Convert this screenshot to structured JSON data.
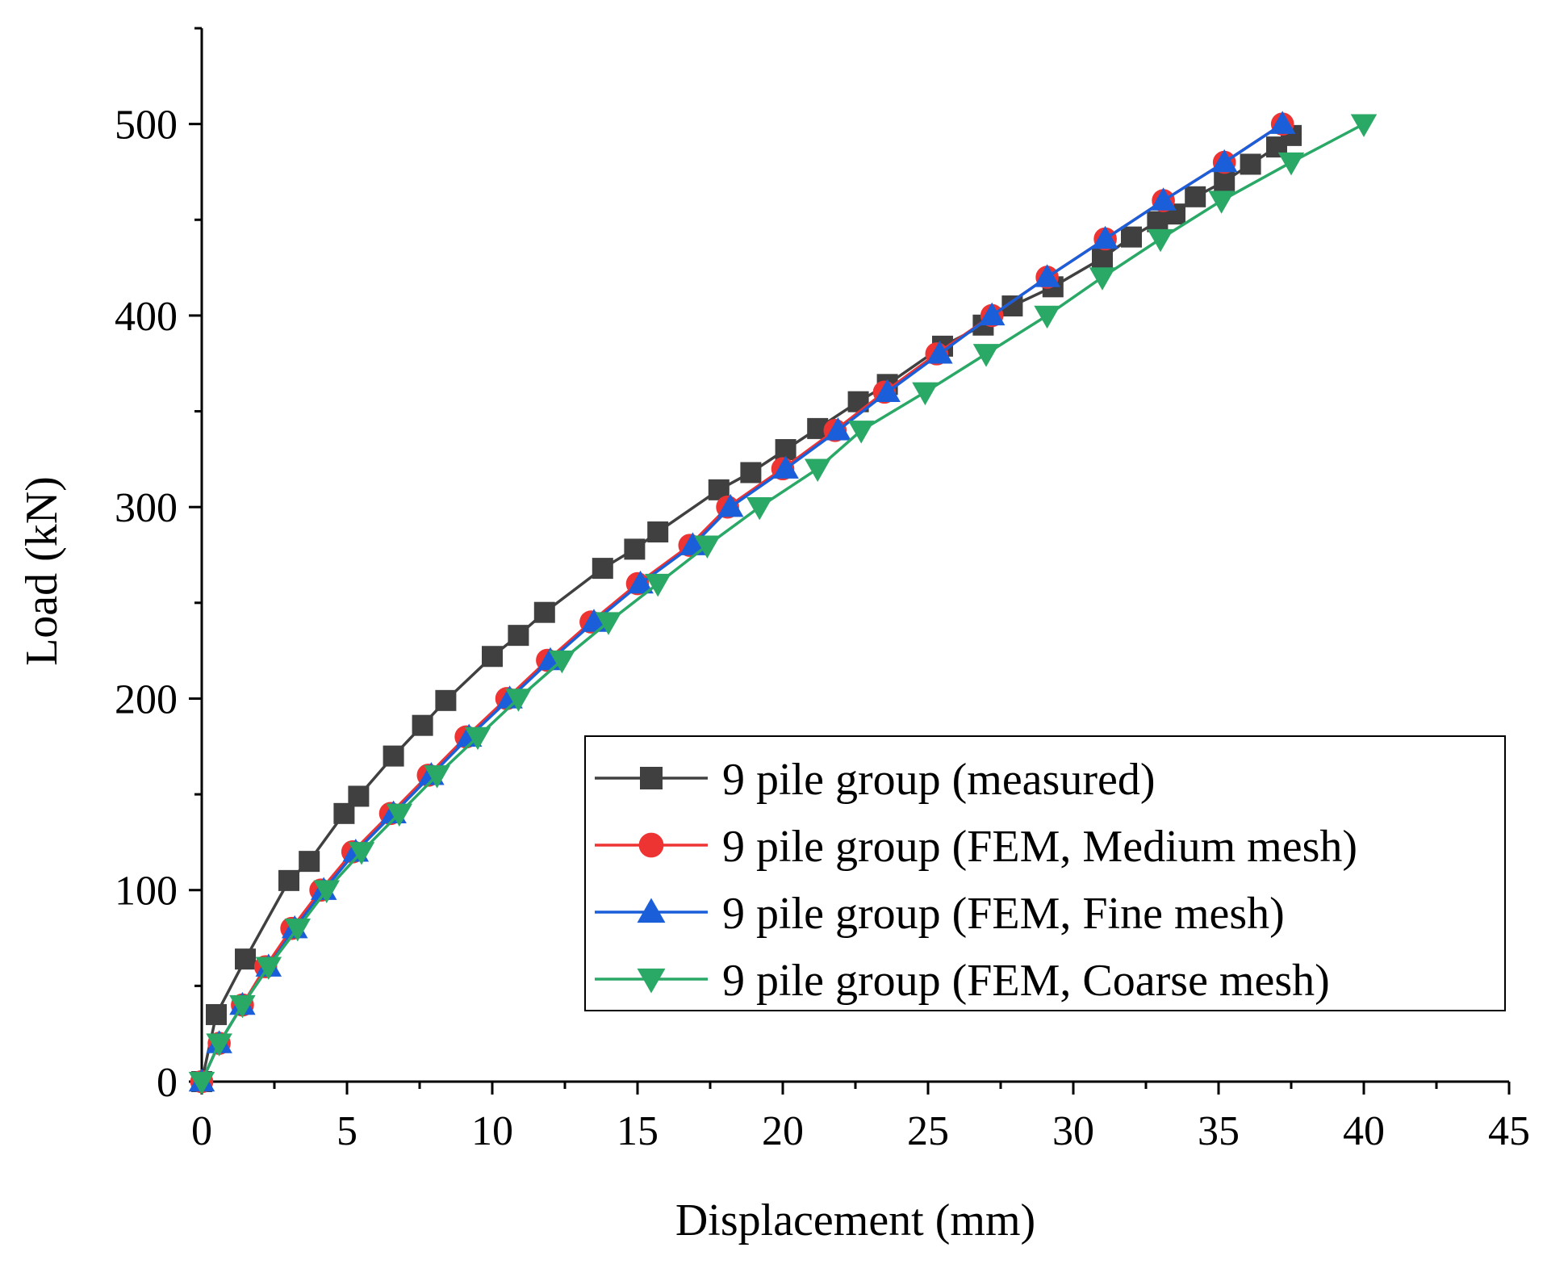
{
  "chart_data": {
    "type": "line",
    "title": "",
    "xlabel": "Displacement (mm)",
    "ylabel": "Load (kN)",
    "xlim": [
      0,
      45
    ],
    "ylim": [
      0,
      550
    ],
    "xticks": [
      0,
      5,
      10,
      15,
      20,
      25,
      30,
      35,
      40,
      45
    ],
    "yticks": [
      0,
      100,
      200,
      300,
      400,
      500
    ],
    "grid": false,
    "legend_position": "bottom-right",
    "series": [
      {
        "name": "9 pile group (measured)",
        "color": "#404040",
        "marker": "square",
        "points": [
          [
            0,
            0
          ],
          [
            0.5,
            35
          ],
          [
            1.5,
            64
          ],
          [
            3.0,
            105
          ],
          [
            3.7,
            115
          ],
          [
            4.9,
            140
          ],
          [
            5.4,
            149
          ],
          [
            6.6,
            170
          ],
          [
            7.6,
            186
          ],
          [
            8.4,
            199
          ],
          [
            10.0,
            222
          ],
          [
            10.9,
            233
          ],
          [
            11.8,
            245
          ],
          [
            13.8,
            268
          ],
          [
            14.9,
            278
          ],
          [
            15.7,
            287
          ],
          [
            17.8,
            309
          ],
          [
            18.9,
            318
          ],
          [
            20.1,
            330
          ],
          [
            21.2,
            341
          ],
          [
            22.6,
            355
          ],
          [
            23.6,
            364
          ],
          [
            25.5,
            384
          ],
          [
            26.9,
            395
          ],
          [
            27.9,
            405
          ],
          [
            29.3,
            415
          ],
          [
            31.0,
            430
          ],
          [
            32.0,
            441
          ],
          [
            32.9,
            449
          ],
          [
            33.5,
            453
          ],
          [
            34.2,
            462
          ],
          [
            35.2,
            470
          ],
          [
            36.1,
            479
          ],
          [
            37.0,
            488
          ],
          [
            37.5,
            494
          ]
        ]
      },
      {
        "name": "9 pile group (FEM, Medium mesh)",
        "color": "#ee3333",
        "marker": "circle",
        "points": [
          [
            0,
            0
          ],
          [
            0.6,
            20
          ],
          [
            1.4,
            40
          ],
          [
            2.2,
            60
          ],
          [
            3.1,
            80
          ],
          [
            4.1,
            100
          ],
          [
            5.2,
            120
          ],
          [
            6.5,
            140
          ],
          [
            7.8,
            160
          ],
          [
            9.1,
            180
          ],
          [
            10.5,
            200
          ],
          [
            11.9,
            220
          ],
          [
            13.4,
            240
          ],
          [
            15.0,
            260
          ],
          [
            16.8,
            280
          ],
          [
            18.1,
            300
          ],
          [
            20.0,
            320
          ],
          [
            21.8,
            340
          ],
          [
            23.5,
            360
          ],
          [
            25.3,
            380
          ],
          [
            27.2,
            400
          ],
          [
            29.1,
            420
          ],
          [
            31.1,
            440
          ],
          [
            33.1,
            460
          ],
          [
            35.2,
            480
          ],
          [
            37.2,
            500
          ]
        ]
      },
      {
        "name": "9 pile group (FEM, Fine mesh)",
        "color": "#1a5fd9",
        "marker": "triangle-up",
        "points": [
          [
            0,
            0
          ],
          [
            0.6,
            20
          ],
          [
            1.4,
            40
          ],
          [
            2.3,
            60
          ],
          [
            3.2,
            80
          ],
          [
            4.2,
            100
          ],
          [
            5.3,
            120
          ],
          [
            6.6,
            140
          ],
          [
            7.9,
            160
          ],
          [
            9.2,
            180
          ],
          [
            10.6,
            200
          ],
          [
            12.0,
            220
          ],
          [
            13.5,
            240
          ],
          [
            15.1,
            260
          ],
          [
            16.9,
            280
          ],
          [
            18.2,
            300
          ],
          [
            20.1,
            320
          ],
          [
            21.9,
            340
          ],
          [
            23.6,
            360
          ],
          [
            25.4,
            380
          ],
          [
            27.2,
            400
          ],
          [
            29.1,
            420
          ],
          [
            31.1,
            440
          ],
          [
            33.1,
            460
          ],
          [
            35.2,
            480
          ],
          [
            37.2,
            500
          ]
        ]
      },
      {
        "name": "9 pile group (FEM, Coarse mesh)",
        "color": "#2aa866",
        "marker": "triangle-down",
        "points": [
          [
            0,
            0
          ],
          [
            0.6,
            20
          ],
          [
            1.4,
            40
          ],
          [
            2.3,
            60
          ],
          [
            3.3,
            80
          ],
          [
            4.3,
            100
          ],
          [
            5.5,
            120
          ],
          [
            6.8,
            140
          ],
          [
            8.1,
            160
          ],
          [
            9.5,
            180
          ],
          [
            10.9,
            200
          ],
          [
            12.4,
            220
          ],
          [
            14.0,
            240
          ],
          [
            15.7,
            260
          ],
          [
            17.4,
            280
          ],
          [
            19.2,
            300
          ],
          [
            21.2,
            320
          ],
          [
            22.7,
            340
          ],
          [
            24.9,
            360
          ],
          [
            27.0,
            380
          ],
          [
            29.1,
            400
          ],
          [
            31.0,
            420
          ],
          [
            33.0,
            440
          ],
          [
            35.1,
            460
          ],
          [
            37.5,
            480
          ],
          [
            40.0,
            500
          ]
        ]
      }
    ]
  }
}
